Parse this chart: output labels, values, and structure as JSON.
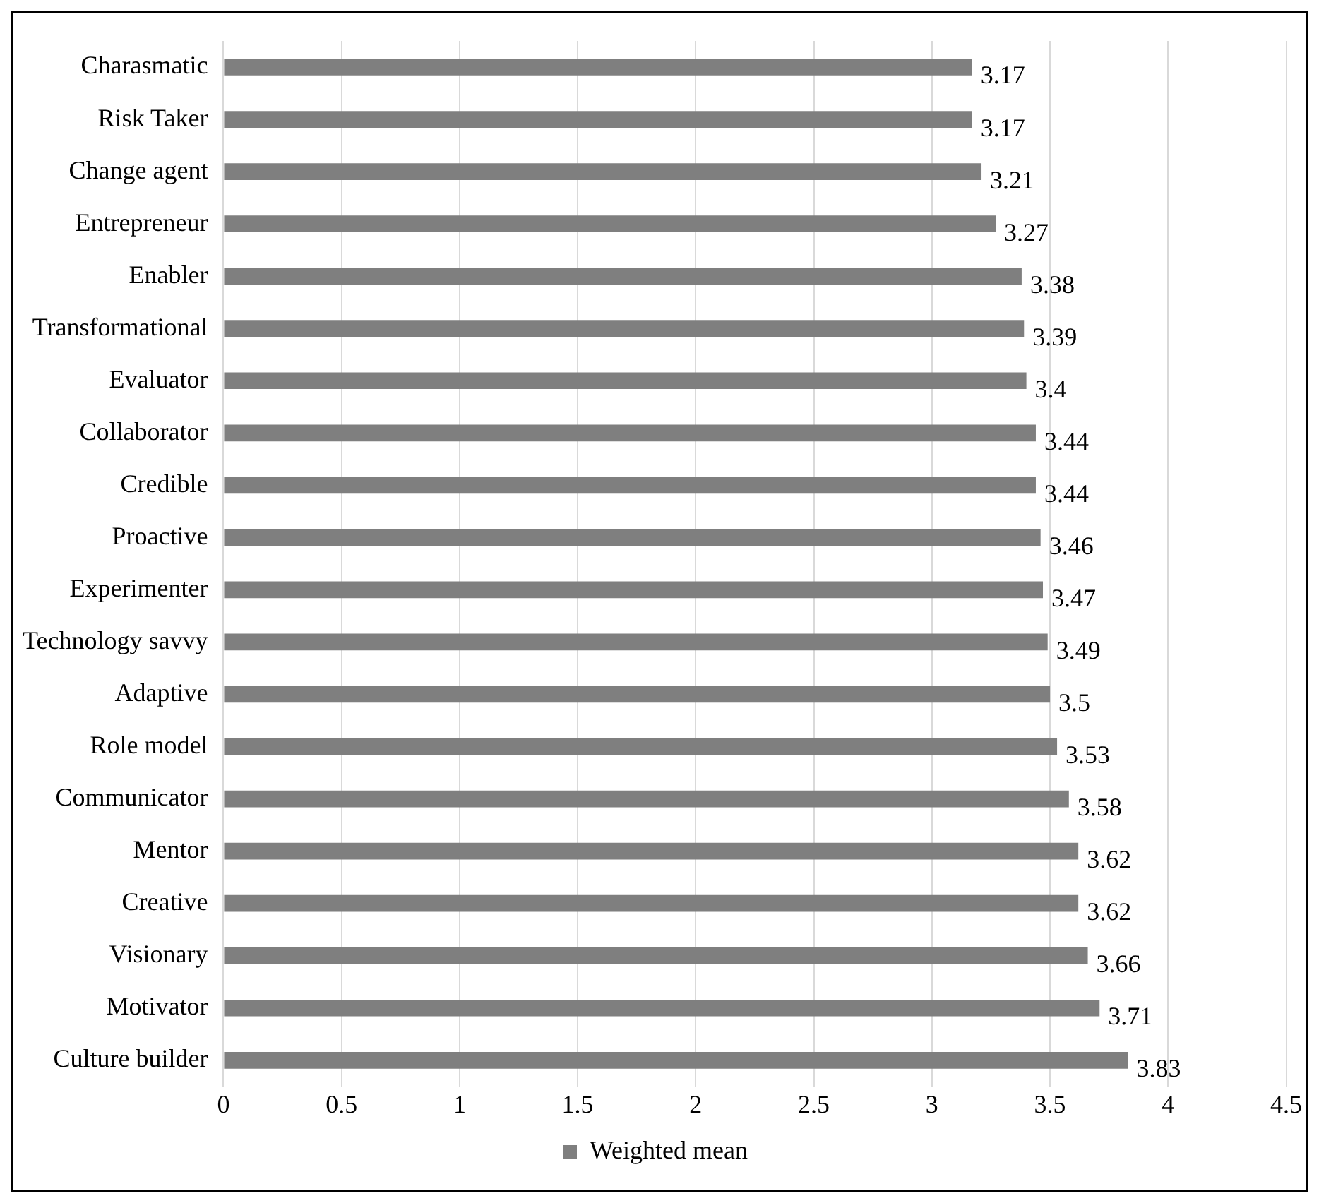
{
  "chart_data": {
    "type": "bar",
    "orientation": "horizontal",
    "categories": [
      "Charasmatic",
      "Risk Taker",
      "Change agent",
      "Entrepreneur",
      "Enabler",
      "Transformational",
      "Evaluator",
      "Collaborator",
      "Credible",
      "Proactive",
      "Experimenter",
      "Technology savvy",
      "Adaptive",
      "Role model",
      "Communicator",
      "Mentor",
      "Creative",
      "Visionary",
      "Motivator",
      "Culture builder"
    ],
    "series": [
      {
        "name": "Weighted mean",
        "color": "#7f7f7f",
        "values": [
          3.17,
          3.17,
          3.21,
          3.27,
          3.38,
          3.39,
          3.4,
          3.44,
          3.44,
          3.46,
          3.47,
          3.49,
          3.5,
          3.53,
          3.58,
          3.62,
          3.62,
          3.66,
          3.71,
          3.83
        ]
      }
    ],
    "xlim": [
      0,
      4.5
    ],
    "xticks": [
      0,
      0.5,
      1,
      1.5,
      2,
      2.5,
      3,
      3.5,
      4,
      4.5
    ],
    "grid": "x",
    "legend": "bottom",
    "data_labels": true
  }
}
